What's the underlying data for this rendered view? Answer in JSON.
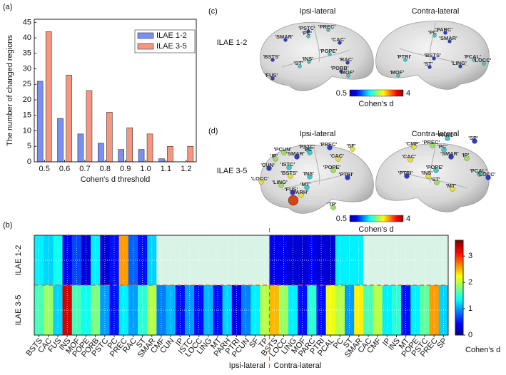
{
  "chart_data": [
    {
      "type": "bar",
      "panel_label": "(a)",
      "xlabel": "Cohen's d threshold",
      "ylabel": "The number of changed regions",
      "categories": [
        "0.5",
        "0.6",
        "0.7",
        "0.8",
        "0.9",
        "1.0",
        "1.1",
        "1.2"
      ],
      "series": [
        {
          "name": "ILAE 1-2",
          "color": "#7b8ff0",
          "values": [
            26,
            14,
            9,
            6,
            4,
            4,
            1,
            0
          ]
        },
        {
          "name": "ILAE 3-5",
          "color": "#f6967e",
          "values": [
            42,
            28,
            23,
            16,
            11,
            9,
            5,
            5
          ]
        }
      ],
      "ylim": [
        0,
        46
      ],
      "yticks": [
        0,
        5,
        10,
        15,
        20,
        25,
        30,
        35,
        40,
        45
      ],
      "grid": false,
      "legend": "upper right"
    },
    {
      "type": "heatmap",
      "panel_label": "(b)",
      "rows": [
        "ILAE 1-2",
        "ILAE 3-5"
      ],
      "groups": [
        {
          "name": "Ipsi-lateral",
          "categories": [
            "BSTS",
            "CAC",
            "FUS",
            "INS",
            "MOF",
            "POPE",
            "PORB",
            "PSTC",
            "PC",
            "PREC",
            "RAC",
            "ST",
            "SMAR",
            "CMF",
            "CUN",
            "IP",
            "ISTC",
            "LOCC",
            "LING",
            "MT",
            "PARH",
            "PTRI",
            "PCUN",
            "SF",
            "TP"
          ]
        },
        {
          "name": "Contra-lateral",
          "categories": [
            "BSTS",
            "LOCC",
            "LING",
            "MOF",
            "PARC",
            "PTRI",
            "PCAL",
            "PC",
            "ST",
            "SMAR",
            "CAC",
            "CMF",
            "IP",
            "INS",
            "MT",
            "POPE",
            "PSTC",
            "PREC",
            "SP"
          ]
        }
      ],
      "values": [
        [
          1.3,
          1.2,
          1.4,
          0.4,
          0.7,
          0.3,
          1.3,
          0.3,
          0.5,
          2.6,
          0.8,
          0.5,
          1.2,
          null,
          null,
          null,
          null,
          null,
          null,
          null,
          null,
          null,
          null,
          null,
          null,
          0.4,
          0.4,
          0.3,
          0.3,
          0.4,
          0.3,
          0.3,
          1.3,
          1.3,
          1.3,
          null,
          null,
          null,
          null,
          null,
          null,
          null,
          null,
          null
        ],
        [
          1.6,
          1.9,
          1.2,
          3.3,
          1.6,
          1.4,
          1.8,
          1.0,
          0.5,
          1.3,
          1.0,
          1.5,
          2.0,
          0.9,
          1.1,
          0.5,
          1.0,
          0.5,
          1.1,
          0.5,
          1.2,
          0.4,
          0.9,
          1.3,
          2.0,
          2.5,
          1.9,
          1.3,
          0.5,
          1.5,
          0.5,
          2.2,
          2.0,
          1.0,
          2.3,
          1.6,
          2.0,
          1.3,
          1.5,
          0.5,
          1.3,
          1.7,
          2.6,
          1.2
        ]
      ],
      "colormap": "jet",
      "missing_color": "#d8f4e6",
      "clim": [
        0,
        3.6
      ],
      "colorbar_ticks": [
        0,
        1,
        2,
        3
      ],
      "colorbar_label": "Cohen's d"
    }
  ],
  "brain_figure": {
    "columns": [
      "Ipsi-lateral",
      "Contra-lateral"
    ],
    "panels": [
      {
        "label": "(c)",
        "row_label": "ILAE 1-2",
        "colorbar": {
          "min_label": "0.5",
          "max_label": "4",
          "title": "Cohen's d"
        },
        "ipsi_regions": [
          "'PSTC'",
          "'PREC'",
          "'SMAR'",
          "'PC'",
          "'CAC'",
          "'POPE'",
          "'BSTS'",
          "'INS'",
          "'RAC'",
          "'ST'",
          "'PORB'",
          "'MOF'",
          "'FUS'"
        ],
        "contra_regions": [
          "'PARC'",
          "'PC'",
          "'SMAR'",
          "'PTRI'",
          "'BSTS'",
          "'PCAL'",
          "'LING'",
          "'LOCC'",
          "'ST'",
          "'MOF'"
        ]
      },
      {
        "label": "(d)",
        "row_label": "ILAE 3-5",
        "colorbar": {
          "min_label": "0.5",
          "max_label": "4",
          "title": "Cohen's d"
        },
        "ipsi_regions": [
          "'PSTC'",
          "'PREC'",
          "'SF'",
          "'PCUN'",
          "'PC'",
          "'SMAR'",
          "'CAC'",
          "'IP'",
          "'ISTC'",
          "'CUN'",
          "'BSTS'",
          "'POPE'",
          "'INS'",
          "'PTRI'",
          "'LOCC'",
          "'LING'",
          "'MT'",
          "'FUS'",
          "'PARH'",
          "'TP'"
        ],
        "contra_regions": [
          "'PARC'",
          "'SP'",
          "'CMF'",
          "'PREC'",
          "'PC'",
          "'SMAR'",
          "'CAC'",
          "'IP'",
          "'POPE'",
          "'PTRI'",
          "'INS'",
          "'ST'",
          "'PCAL'",
          "'LOCC'",
          "'MT'"
        ]
      }
    ]
  }
}
